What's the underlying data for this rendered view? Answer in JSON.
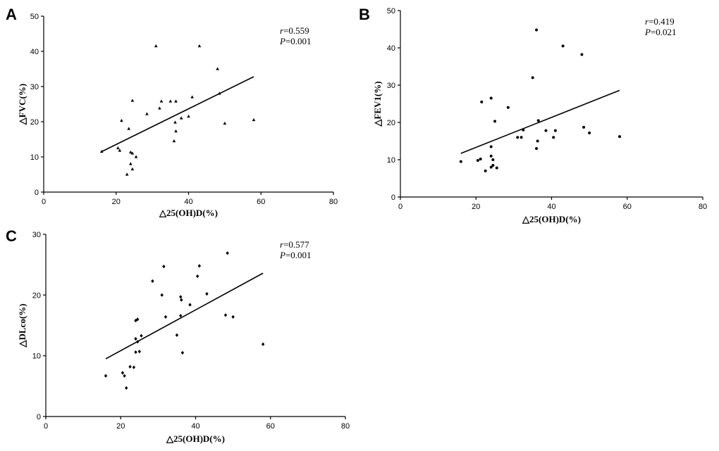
{
  "chart_data": [
    {
      "panel": "A",
      "type": "scatter",
      "marker": "triangle",
      "xlabel": "△25(OH)D(%)",
      "ylabel": "△FVC(%)",
      "xlim": [
        0,
        80
      ],
      "ylim": [
        0,
        50
      ],
      "xticks": [
        0,
        20,
        40,
        60,
        80
      ],
      "yticks": [
        0,
        10,
        20,
        30,
        40,
        50
      ],
      "r_label": "r",
      "r_value": "=0.559",
      "p_label": "P",
      "p_value": "=0.001",
      "fit": {
        "x": [
          16,
          58
        ],
        "y": [
          11.5,
          32.8
        ]
      },
      "points": [
        [
          16,
          11.5
        ],
        [
          20.5,
          12.5
        ],
        [
          21,
          11.8
        ],
        [
          21.5,
          20.3
        ],
        [
          23,
          5
        ],
        [
          23.5,
          18
        ],
        [
          24,
          11.3
        ],
        [
          24,
          8
        ],
        [
          24.5,
          6.5
        ],
        [
          24.5,
          26
        ],
        [
          24.5,
          11
        ],
        [
          25.5,
          10
        ],
        [
          28.5,
          22.2
        ],
        [
          31,
          41.5
        ],
        [
          32,
          23.8
        ],
        [
          32.5,
          25.8
        ],
        [
          35,
          25.8
        ],
        [
          36.5,
          25.8
        ],
        [
          36,
          14.5
        ],
        [
          36.5,
          17.3
        ],
        [
          36.3,
          19.8
        ],
        [
          38,
          21
        ],
        [
          40,
          21.5
        ],
        [
          41,
          27
        ],
        [
          43,
          41.5
        ],
        [
          48,
          35
        ],
        [
          48.5,
          28
        ],
        [
          50,
          19.5
        ],
        [
          58,
          20.5
        ]
      ]
    },
    {
      "panel": "B",
      "type": "scatter",
      "marker": "dot",
      "xlabel": "△25(OH)D(%)",
      "ylabel": "△FEV1(%)",
      "xlim": [
        0,
        80
      ],
      "ylim": [
        0,
        50
      ],
      "xticks": [
        0,
        20,
        40,
        60,
        80
      ],
      "yticks": [
        0,
        10,
        20,
        30,
        40,
        50
      ],
      "r_label": "r",
      "r_value": "=0.419",
      "p_label": "P",
      "p_value": "=0.021",
      "fit": {
        "x": [
          16,
          58
        ],
        "y": [
          11.7,
          28.6
        ]
      },
      "points": [
        [
          16,
          9.5
        ],
        [
          20.5,
          9.8
        ],
        [
          21.2,
          10.2
        ],
        [
          21.5,
          25.5
        ],
        [
          22.5,
          7
        ],
        [
          24,
          26.5
        ],
        [
          24,
          13.5
        ],
        [
          24,
          11
        ],
        [
          24.5,
          10
        ],
        [
          24,
          8
        ],
        [
          24.5,
          8.5
        ],
        [
          25,
          20.3
        ],
        [
          25.5,
          7.8
        ],
        [
          28.5,
          24
        ],
        [
          31,
          16
        ],
        [
          32,
          16
        ],
        [
          32.5,
          18
        ],
        [
          35,
          32
        ],
        [
          36,
          44.8
        ],
        [
          36.5,
          20.5
        ],
        [
          36.3,
          15
        ],
        [
          36,
          13
        ],
        [
          38.5,
          17.8
        ],
        [
          40.5,
          16
        ],
        [
          41,
          17.8
        ],
        [
          43,
          40.5
        ],
        [
          48,
          38.2
        ],
        [
          48.5,
          18.7
        ],
        [
          50,
          17.2
        ],
        [
          58,
          16.2
        ]
      ]
    },
    {
      "panel": "C",
      "type": "scatter",
      "marker": "diamond",
      "xlabel": "△25(OH)D(%)",
      "ylabel": "△DLco(%)",
      "xlim": [
        0,
        80
      ],
      "ylim": [
        0,
        30
      ],
      "xticks": [
        0,
        20,
        40,
        60,
        80
      ],
      "yticks": [
        0,
        10,
        20,
        30
      ],
      "r_label": "r",
      "r_value": "=0.577",
      "p_label": "P",
      "p_value": "=0.001",
      "fit": {
        "x": [
          16,
          58
        ],
        "y": [
          9.5,
          23.6
        ]
      },
      "points": [
        [
          16,
          6.7
        ],
        [
          20.5,
          7.2
        ],
        [
          21,
          6.7
        ],
        [
          21.5,
          4.7
        ],
        [
          22.5,
          8.2
        ],
        [
          23.5,
          8.1
        ],
        [
          24,
          10.6
        ],
        [
          24,
          12.8
        ],
        [
          24.5,
          12.3
        ],
        [
          24,
          15.8
        ],
        [
          24.5,
          16
        ],
        [
          25,
          10.7
        ],
        [
          25.5,
          13.3
        ],
        [
          28.5,
          22.3
        ],
        [
          31,
          20
        ],
        [
          31.5,
          24.7
        ],
        [
          32,
          16.4
        ],
        [
          35,
          13.4
        ],
        [
          36,
          16.6
        ],
        [
          36,
          19.7
        ],
        [
          36.2,
          19.2
        ],
        [
          36.5,
          10.5
        ],
        [
          38.5,
          18.4
        ],
        [
          40.5,
          23.1
        ],
        [
          41,
          24.8
        ],
        [
          43,
          20.2
        ],
        [
          48,
          16.7
        ],
        [
          48.5,
          26.9
        ],
        [
          50,
          16.4
        ],
        [
          58,
          11.9
        ]
      ]
    }
  ]
}
